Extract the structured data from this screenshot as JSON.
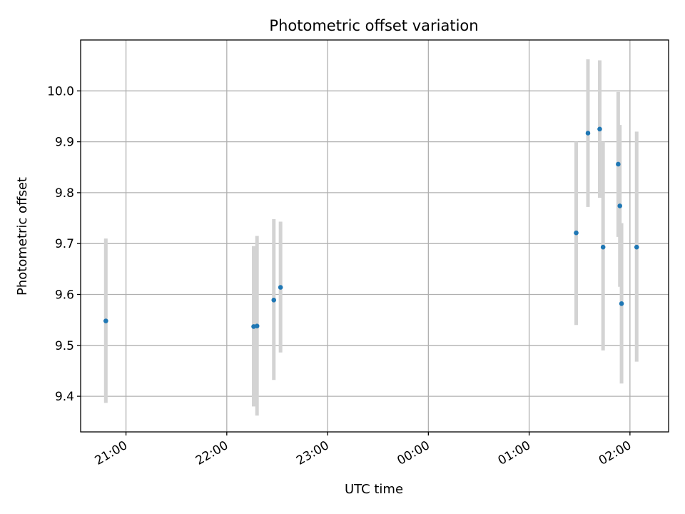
{
  "chart_data": {
    "type": "scatter",
    "title": "Photometric offset variation",
    "xlabel": "UTC time",
    "ylabel": "Photometric offset",
    "x_axis": {
      "type": "time",
      "range": [
        "20:33",
        "02:23"
      ],
      "ticks": [
        "21:00",
        "22:00",
        "23:00",
        "00:00",
        "01:00",
        "02:00"
      ]
    },
    "y_axis": {
      "range": [
        9.33,
        10.1
      ],
      "ticks": [
        "9.4",
        "9.5",
        "9.6",
        "9.7",
        "9.8",
        "9.9",
        "10.0"
      ]
    },
    "grid": true,
    "colors": {
      "point": "#1f77b4",
      "errorbar": "#d3d3d3",
      "grid": "#b0b0b0"
    },
    "series": [
      {
        "points": [
          {
            "time": "20:48",
            "y": 9.548,
            "ylow": 9.387,
            "yhigh": 9.71
          },
          {
            "time": "22:16",
            "y": 9.537,
            "ylow": 9.38,
            "yhigh": 9.695
          },
          {
            "time": "22:18",
            "y": 9.538,
            "ylow": 9.362,
            "yhigh": 9.715
          },
          {
            "time": "22:28",
            "y": 9.589,
            "ylow": 9.432,
            "yhigh": 9.748
          },
          {
            "time": "22:32",
            "y": 9.614,
            "ylow": 9.486,
            "yhigh": 9.743
          },
          {
            "time": "01:28",
            "y": 9.721,
            "ylow": 9.54,
            "yhigh": 9.9
          },
          {
            "time": "01:35",
            "y": 9.917,
            "ylow": 9.772,
            "yhigh": 10.062
          },
          {
            "time": "01:42",
            "y": 9.925,
            "ylow": 9.79,
            "yhigh": 10.06
          },
          {
            "time": "01:44",
            "y": 9.693,
            "ylow": 9.49,
            "yhigh": 9.9
          },
          {
            "time": "01:53",
            "y": 9.856,
            "ylow": 9.713,
            "yhigh": 9.998
          },
          {
            "time": "01:54",
            "y": 9.774,
            "ylow": 9.615,
            "yhigh": 9.933
          },
          {
            "time": "01:55",
            "y": 9.582,
            "ylow": 9.425,
            "yhigh": 9.74
          },
          {
            "time": "02:04",
            "y": 9.693,
            "ylow": 9.468,
            "yhigh": 9.92
          }
        ]
      }
    ]
  }
}
